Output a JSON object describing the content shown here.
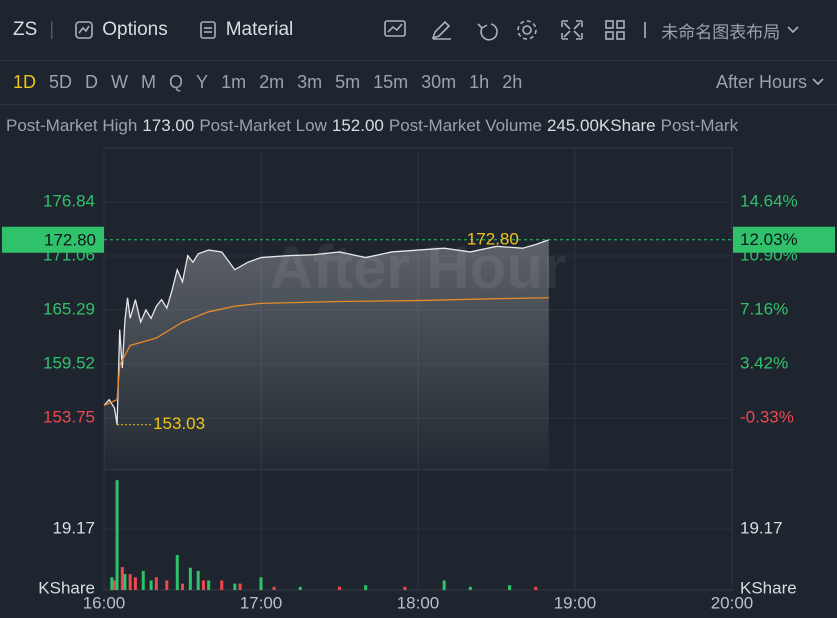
{
  "toolbar": {
    "symbol": "ZS",
    "options": "Options",
    "material": "Material",
    "layout": "未命名图表布局"
  },
  "periods": [
    "1D",
    "5D",
    "D",
    "W",
    "M",
    "Q",
    "Y",
    "1m",
    "2m",
    "3m",
    "5m",
    "15m",
    "30m",
    "1h",
    "2h"
  ],
  "session": "After Hours",
  "stats": [
    {
      "label": "Post-Market High",
      "value": "173.00"
    },
    {
      "label": "Post-Market Low",
      "value": "152.00"
    },
    {
      "label": "Post-Market Volume",
      "value": "245.00KShare"
    },
    {
      "label": "Post-Mark"
    }
  ],
  "chart_data": {
    "type": "line",
    "watermark": "After Hour",
    "xlim": [
      "16:00",
      "20:00"
    ],
    "xticks": [
      "16:00",
      "17:00",
      "18:00",
      "19:00",
      "20:00"
    ],
    "ylim": [
      148.19,
      182.61
    ],
    "yticks": [
      176.84,
      171.06,
      165.29,
      159.52,
      153.75
    ],
    "y2lim": [
      -3.93,
      18.39
    ],
    "y2ticks": [
      {
        "value": 14.64,
        "label": "14.64%"
      },
      {
        "value": 10.9,
        "label": "10.90%"
      },
      {
        "value": 7.16,
        "label": "7.16%"
      },
      {
        "value": 3.42,
        "label": "3.42%"
      },
      {
        "value": -0.33,
        "label": "-0.33%"
      }
    ],
    "up_color": "#2fc26b",
    "down_color": "#f0474f",
    "series": [
      {
        "color": "#e6e6e6",
        "x": [
          "16:00",
          "16:02",
          "16:04",
          "16:05",
          "16:06",
          "16:07",
          "16:08",
          "16:09",
          "16:10",
          "16:12",
          "16:14",
          "16:16",
          "16:18",
          "16:20",
          "16:22",
          "16:24",
          "16:26",
          "16:28",
          "16:30",
          "16:32",
          "16:34",
          "16:36",
          "16:40",
          "16:45",
          "16:50",
          "16:55",
          "17:00",
          "17:10",
          "17:20",
          "17:30",
          "17:40",
          "17:50",
          "18:00",
          "18:10",
          "18:20",
          "18:30",
          "18:40",
          "18:45",
          "18:50"
        ],
        "values": [
          155.1,
          155.7,
          154.8,
          153.03,
          163.2,
          159.1,
          164.2,
          166.6,
          164.4,
          166.4,
          164.0,
          165.3,
          164.4,
          165.7,
          166.4,
          165.5,
          167.4,
          169.6,
          168.3,
          171.1,
          170.4,
          171.3,
          171.7,
          171.5,
          169.6,
          170.4,
          170.9,
          171.1,
          171.2,
          171.5,
          170.9,
          171.5,
          171.7,
          171.9,
          171.5,
          172.1,
          171.9,
          172.3,
          172.8
        ]
      },
      {
        "color": "#e58a2b",
        "x": [
          "16:00",
          "16:05",
          "16:06",
          "16:10",
          "16:20",
          "16:30",
          "16:40",
          "16:50",
          "17:00",
          "17:30",
          "18:00",
          "18:30",
          "18:50"
        ],
        "values": [
          155.1,
          155.7,
          159.4,
          161.5,
          162.3,
          164.0,
          165.1,
          165.7,
          166.0,
          166.2,
          166.3,
          166.5,
          166.6
        ]
      }
    ],
    "last": {
      "price": {
        "value": 172.8,
        "label": "172.80"
      },
      "percent": {
        "value": 12.03,
        "label": "12.03%"
      }
    },
    "max": {
      "value": 172.8,
      "label": "172.80"
    },
    "min": {
      "value": 153.03,
      "label": "153.03"
    },
    "volume": {
      "unit": "KShare",
      "ylim": [
        0,
        37.7
      ],
      "yticks": [
        19.17
      ],
      "series": [
        {
          "color": "#2fc26b",
          "x": [
            "16:03",
            "16:05",
            "16:08",
            "16:15",
            "16:18",
            "16:28",
            "16:33",
            "16:36",
            "16:40",
            "16:50",
            "17:00",
            "17:15",
            "17:40",
            "18:10",
            "18:20",
            "18:35"
          ],
          "values": [
            4,
            34.5,
            5,
            6,
            3,
            11,
            7,
            6,
            3,
            2,
            4,
            1,
            1.5,
            3,
            1,
            1.5
          ]
        },
        {
          "color": "#f0474f",
          "x": [
            "16:04",
            "16:07",
            "16:10",
            "16:12",
            "16:20",
            "16:24",
            "16:30",
            "16:38",
            "16:45",
            "16:52",
            "17:05",
            "17:30",
            "17:55",
            "18:45"
          ],
          "values": [
            3,
            7.2,
            5,
            4,
            4,
            3,
            2,
            3,
            3,
            2,
            1,
            1,
            1,
            1
          ]
        }
      ]
    }
  }
}
